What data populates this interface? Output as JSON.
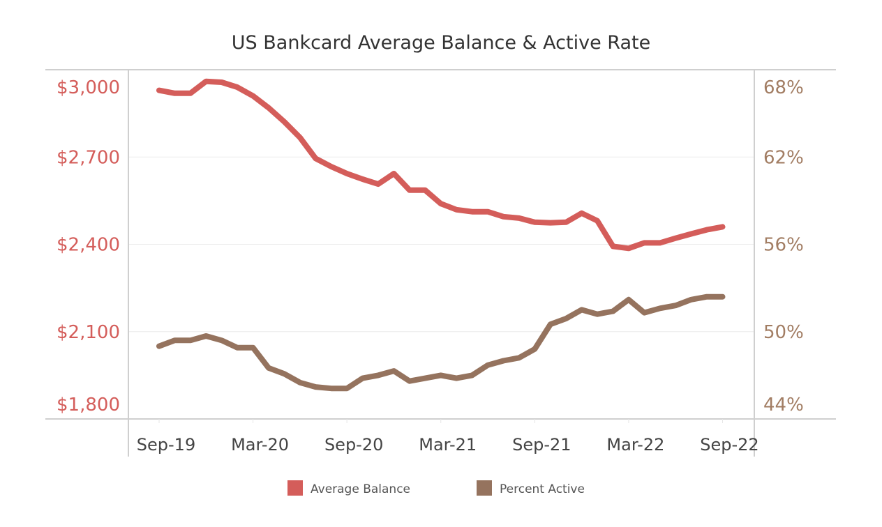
{
  "chart_data": {
    "type": "line",
    "title": "US Bankcard Average Balance & Active Rate",
    "x": [
      "Sep-19",
      "Oct-19",
      "Nov-19",
      "Dec-19",
      "Jan-20",
      "Feb-20",
      "Mar-20",
      "Apr-20",
      "May-20",
      "Jun-20",
      "Jul-20",
      "Aug-20",
      "Sep-20",
      "Oct-20",
      "Nov-20",
      "Dec-20",
      "Jan-21",
      "Feb-21",
      "Mar-21",
      "Apr-21",
      "May-21",
      "Jun-21",
      "Jul-21",
      "Aug-21",
      "Sep-21",
      "Oct-21",
      "Nov-21",
      "Dec-21",
      "Jan-22",
      "Feb-22",
      "Mar-22",
      "Apr-22",
      "May-22",
      "Jun-22",
      "Jul-22",
      "Aug-22",
      "Sep-22"
    ],
    "x_ticks": [
      "Sep-19",
      "Mar-20",
      "Sep-20",
      "Mar-21",
      "Sep-21",
      "Mar-22",
      "Sep-22"
    ],
    "series": [
      {
        "name": "Average Balance",
        "axis": "left",
        "color": "#d45d5a",
        "values": [
          2929,
          2919,
          2919,
          2960,
          2957,
          2940,
          2910,
          2869,
          2821,
          2767,
          2695,
          2667,
          2643,
          2624,
          2607,
          2643,
          2586,
          2586,
          2540,
          2519,
          2512,
          2512,
          2495,
          2490,
          2476,
          2474,
          2476,
          2507,
          2481,
          2393,
          2386,
          2405,
          2405,
          2421,
          2436,
          2450,
          2460
        ]
      },
      {
        "name": "Percent Active",
        "axis": "right",
        "color": "#95735e",
        "values": [
          49.0,
          49.4,
          49.4,
          49.7,
          49.4,
          48.9,
          48.9,
          47.5,
          47.1,
          46.5,
          46.2,
          46.1,
          46.1,
          46.8,
          47.0,
          47.3,
          46.6,
          46.8,
          47.0,
          46.8,
          47.0,
          47.7,
          48.0,
          48.2,
          48.8,
          50.5,
          50.9,
          51.5,
          51.2,
          51.4,
          52.2,
          51.3,
          51.6,
          51.8,
          52.2,
          52.4,
          52.4
        ]
      }
    ],
    "y_left": {
      "range": [
        1800,
        3000
      ],
      "ticks": [
        "$1,800",
        "$2,100",
        "$2,400",
        "$2,700",
        "$3,000"
      ],
      "tick_values": [
        1800,
        2100,
        2400,
        2700,
        3000
      ],
      "color": "#d45d5a"
    },
    "y_right": {
      "range": [
        44,
        68
      ],
      "ticks": [
        "44%",
        "50%",
        "56%",
        "62%",
        "68%"
      ],
      "tick_values": [
        44,
        50,
        56,
        62,
        68
      ],
      "color": "#a27d63"
    },
    "grid": true,
    "legend_position": "bottom"
  }
}
